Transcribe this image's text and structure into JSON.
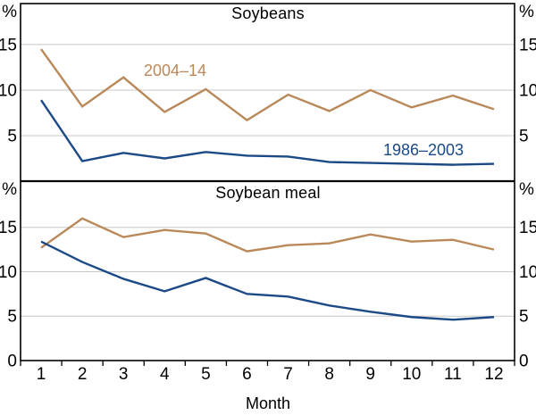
{
  "figure": {
    "xlabel": "Month",
    "x_categories": [
      "1",
      "2",
      "3",
      "4",
      "5",
      "6",
      "7",
      "8",
      "9",
      "10",
      "11",
      "12"
    ],
    "y_unit": "%",
    "colors": {
      "series_2004_14": "#b9895a",
      "series_1986_2003": "#1b4a87",
      "grid": "#c8c8c8",
      "axis": "#000000",
      "background": "#ffffff"
    }
  },
  "chart_data": [
    {
      "type": "line",
      "title": "Soybeans",
      "x": [
        1,
        2,
        3,
        4,
        5,
        6,
        7,
        8,
        9,
        10,
        11,
        12
      ],
      "ylim": [
        0,
        19.5
      ],
      "yticks": [
        5,
        10,
        15
      ],
      "y_unit": "%",
      "grid": true,
      "legend_position": "inline-text-labels",
      "series": [
        {
          "name": "2004–14",
          "color_key": "series_2004_14",
          "values": [
            14.5,
            8.2,
            11.4,
            7.6,
            10.1,
            6.7,
            9.5,
            7.7,
            10.0,
            8.1,
            9.4,
            7.9
          ]
        },
        {
          "name": "1986–2003",
          "color_key": "series_1986_2003",
          "values": [
            8.9,
            2.2,
            3.1,
            2.5,
            3.2,
            2.8,
            2.7,
            2.1,
            2.0,
            1.9,
            1.8,
            1.9
          ]
        }
      ]
    },
    {
      "type": "line",
      "title": "Soybean meal",
      "x": [
        1,
        2,
        3,
        4,
        5,
        6,
        7,
        8,
        9,
        10,
        11,
        12
      ],
      "ylim": [
        0,
        20.2
      ],
      "yticks": [
        0,
        5,
        10,
        15
      ],
      "y_unit": "%",
      "grid": true,
      "legend_position": "none",
      "series": [
        {
          "name": "2004–14",
          "color_key": "series_2004_14",
          "values": [
            12.7,
            16.0,
            13.9,
            14.7,
            14.3,
            12.3,
            13.0,
            13.2,
            14.2,
            13.4,
            13.6,
            12.5
          ]
        },
        {
          "name": "1986–2003",
          "color_key": "series_1986_2003",
          "values": [
            13.4,
            11.1,
            9.2,
            7.8,
            9.3,
            7.5,
            7.2,
            6.2,
            5.5,
            4.9,
            4.6,
            4.9
          ]
        }
      ]
    }
  ]
}
